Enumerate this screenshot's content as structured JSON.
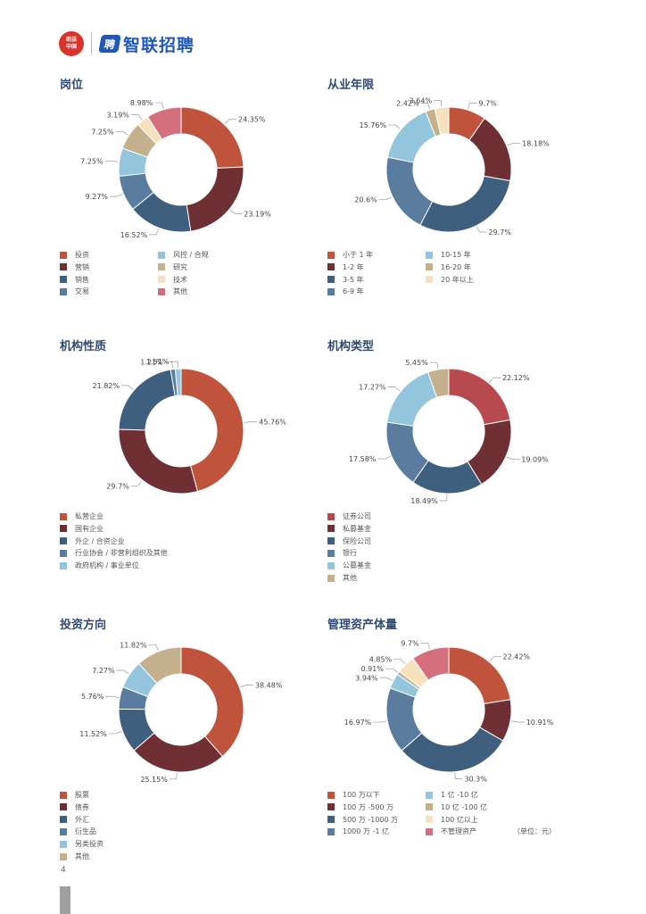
{
  "header": {
    "seal_text": "助孩中国",
    "brand_mark": "聘",
    "brand_name": "智联招聘"
  },
  "page_number": "4",
  "colors": {
    "red": "#c0533c",
    "maroon": "#6e3034",
    "navy": "#3e5f7e",
    "steel": "#5a7c9e",
    "lightblue": "#93c5dc",
    "tan": "#c4b08c",
    "cream": "#f5e1bd",
    "pink": "#d4707e",
    "crimson": "#b84a4f"
  },
  "chart_data": [
    {
      "type": "pie",
      "title": "岗位",
      "categories": [
        "投资",
        "营销",
        "销售",
        "交易",
        "风控 / 合规",
        "研究",
        "技术",
        "其他"
      ],
      "values": [
        24.35,
        23.19,
        16.52,
        9.27,
        7.25,
        7.25,
        3.19,
        8.98
      ],
      "labels": [
        "24.35%",
        "23.19%",
        "16.52%",
        "9.27%",
        "7.25%",
        "7.25%",
        "3.19%",
        "8.98%"
      ],
      "colors": [
        "#c0533c",
        "#6e3034",
        "#3e5f7e",
        "#5a7c9e",
        "#93c5dc",
        "#c4b08c",
        "#f5e1bd",
        "#d4707e"
      ],
      "legend_columns": 2
    },
    {
      "type": "pie",
      "title": "从业年限",
      "categories": [
        "小于 1 年",
        "1-2 年",
        "3-5 年",
        "6-9 年",
        "10-15 年",
        "16-20 年",
        "20 年以上"
      ],
      "values": [
        9.7,
        18.18,
        29.7,
        20.6,
        15.76,
        2.42,
        3.64
      ],
      "labels": [
        "9.7%",
        "18.18%",
        "29.7%",
        "20.6%",
        "15.76%",
        "2.42%",
        "3.64%"
      ],
      "colors": [
        "#c0533c",
        "#6e3034",
        "#3e5f7e",
        "#5a7c9e",
        "#93c5dc",
        "#c4b08c",
        "#f5e1bd"
      ],
      "legend_columns": 2
    },
    {
      "type": "pie",
      "title": "机构性质",
      "categories": [
        "私营企业",
        "国有企业",
        "外企 / 合资企业",
        "行业协会 / 非营利组织及其他",
        "政府机构 / 事业单位"
      ],
      "values": [
        45.76,
        29.7,
        21.82,
        1.21,
        1.51
      ],
      "labels": [
        "45.76%",
        "29.7%",
        "21.82%",
        "1.21%",
        "1.51%"
      ],
      "colors": [
        "#c0533c",
        "#6e3034",
        "#3e5f7e",
        "#5a7c9e",
        "#93c5dc"
      ],
      "legend_columns": 1
    },
    {
      "type": "pie",
      "title": "机构类型",
      "categories": [
        "证券公司",
        "私募基金",
        "保险公司",
        "银行",
        "公募基金",
        "其他"
      ],
      "values": [
        22.12,
        19.09,
        18.49,
        17.58,
        17.27,
        5.45
      ],
      "labels": [
        "22.12%",
        "19.09%",
        "18.49%",
        "17.58%",
        "17.27%",
        "5.45%"
      ],
      "colors": [
        "#b84a4f",
        "#6e3034",
        "#3e5f7e",
        "#5a7c9e",
        "#93c5dc",
        "#c4b08c"
      ],
      "legend_columns": 1
    },
    {
      "type": "pie",
      "title": "投资方向",
      "categories": [
        "股票",
        "债券",
        "外汇",
        "衍生品",
        "另类投资",
        "其他"
      ],
      "values": [
        38.48,
        25.15,
        11.52,
        5.76,
        7.27,
        11.82
      ],
      "labels": [
        "38.48%",
        "25.15%",
        "11.52%",
        "5.76%",
        "7.27%",
        "11.82%"
      ],
      "colors": [
        "#c0533c",
        "#6e3034",
        "#3e5f7e",
        "#5a7c9e",
        "#93c5dc",
        "#c4b08c"
      ],
      "legend_columns": 1
    },
    {
      "type": "pie",
      "title": "管理资产体量",
      "categories": [
        "100 万以下",
        "100 万 -500 万",
        "500 万 -1000 万",
        "1000 万 -1 亿",
        "1 亿 -10 亿",
        "10 亿 -100 亿",
        "100 亿以上",
        "不管理资产"
      ],
      "values": [
        22.42,
        10.91,
        30.3,
        16.97,
        3.94,
        0.91,
        4.85,
        9.7
      ],
      "labels": [
        "22.42%",
        "10.91%",
        "30.3%",
        "16.97%",
        "3.94%",
        "0.91%",
        "4.85%",
        "9.7%"
      ],
      "colors": [
        "#c0533c",
        "#6e3034",
        "#3e5f7e",
        "#5a7c9e",
        "#93c5dc",
        "#c4b08c",
        "#f5e1bd",
        "#d4707e"
      ],
      "legend_columns": 2,
      "unit_note": "（单位：元）"
    }
  ]
}
